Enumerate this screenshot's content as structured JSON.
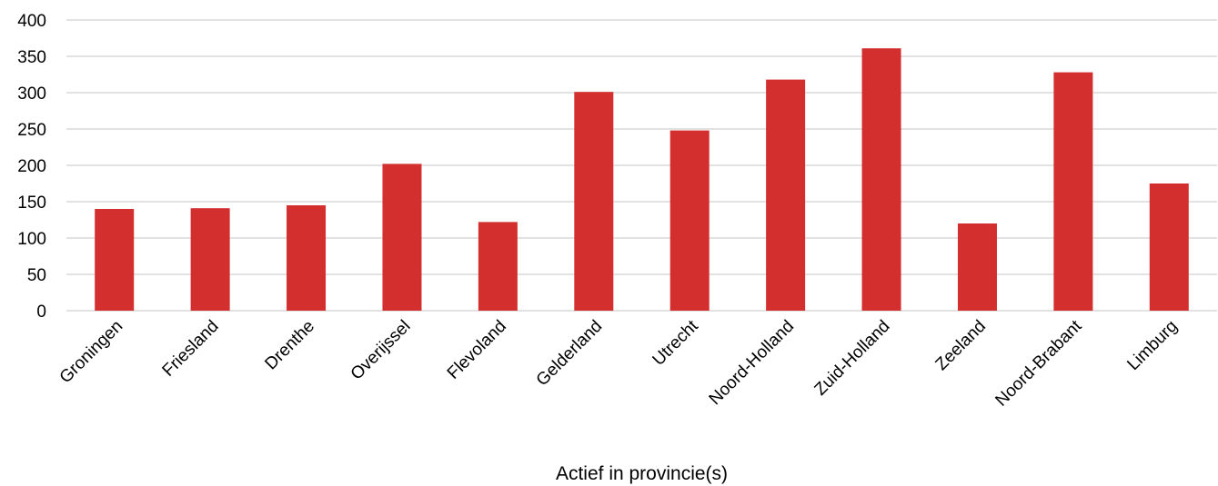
{
  "chart_data": {
    "type": "bar",
    "title": "",
    "xlabel": "Actief in provincie(s)",
    "ylabel": "",
    "ylim": [
      0,
      400
    ],
    "yticks": [
      0,
      50,
      100,
      150,
      200,
      250,
      300,
      350,
      400
    ],
    "ytick_labels": [
      "0",
      "50",
      "100",
      "150",
      "200",
      "250",
      "300",
      "350",
      "400"
    ],
    "grid": true,
    "legend": "none",
    "bar_color": "#d32f2f",
    "grid_color": "#d9d9d9",
    "categories": [
      "Groningen",
      "Friesland",
      "Drenthe",
      "Overijssel",
      "Flevoland",
      "Gelderland",
      "Utrecht",
      "Noord-Holland",
      "Zuid-Holland",
      "Zeeland",
      "Noord-Brabant",
      "Limburg"
    ],
    "values": [
      140,
      141,
      145,
      202,
      122,
      301,
      248,
      318,
      361,
      120,
      328,
      175
    ]
  }
}
